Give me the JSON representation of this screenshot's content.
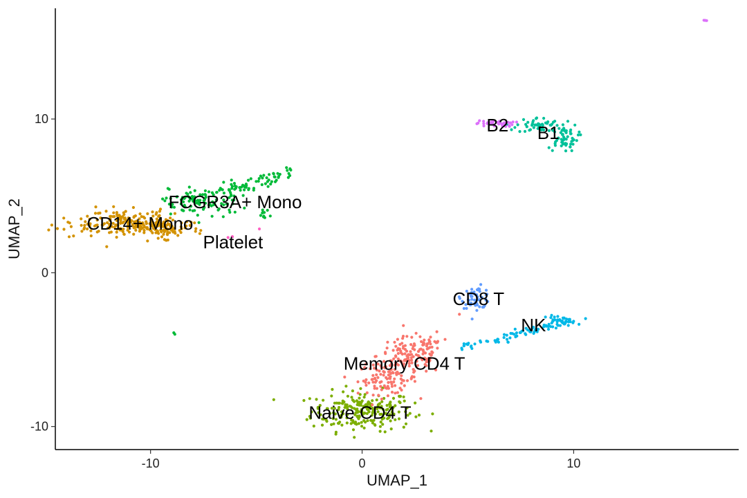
{
  "chart_data": {
    "type": "scatter",
    "title": "",
    "xlabel": "UMAP_1",
    "ylabel": "UMAP_2",
    "xlim": [
      -14.5,
      17.8
    ],
    "ylim": [
      -11.5,
      17.2
    ],
    "xticks": [
      -10,
      0,
      10
    ],
    "yticks": [
      -10,
      0,
      10
    ],
    "grid": false,
    "legend": "none",
    "clusters": [
      {
        "label": "Naive CD4 T",
        "color": "#7CAE00",
        "label_pos": [
          -0.1,
          -9.1
        ],
        "blobs": [
          {
            "cx": 0.0,
            "cy": -9.0,
            "sx": 1.2,
            "sy": 0.65,
            "n": 230
          }
        ]
      },
      {
        "label": "Memory CD4 T",
        "color": "#F8766D",
        "label_pos": [
          2.0,
          -5.9
        ],
        "blobs": [
          {
            "cx": 1.2,
            "cy": -6.9,
            "sx": 0.7,
            "sy": 0.5,
            "n": 100
          },
          {
            "cx": 2.3,
            "cy": -5.4,
            "sx": 0.8,
            "sy": 0.6,
            "n": 120
          },
          {
            "cx": 3.2,
            "cy": -4.6,
            "sx": 0.3,
            "sy": 0.4,
            "n": 20
          }
        ]
      },
      {
        "label": "CD8 T",
        "color": "#619CFF",
        "label_pos": [
          5.5,
          -1.7
        ],
        "blobs": [
          {
            "cx": 5.4,
            "cy": -1.6,
            "sx": 0.35,
            "sy": 0.35,
            "n": 60
          }
        ]
      },
      {
        "label": "NK",
        "color": "#00B8E7",
        "label_pos": [
          8.1,
          -3.4
        ],
        "line": {
          "from": [
            4.6,
            -4.9
          ],
          "to": [
            9.8,
            -3.1
          ],
          "n": 80,
          "spread": 0.15
        },
        "blobs": [
          {
            "cx": 9.3,
            "cy": -3.1,
            "sx": 0.4,
            "sy": 0.15,
            "n": 30
          }
        ]
      },
      {
        "label": "B1",
        "color": "#00C19A",
        "label_pos": [
          8.8,
          9.1
        ],
        "blobs": [
          {
            "cx": 8.3,
            "cy": 9.6,
            "sx": 0.5,
            "sy": 0.25,
            "n": 50
          },
          {
            "cx": 9.5,
            "cy": 8.8,
            "sx": 0.35,
            "sy": 0.45,
            "n": 60
          }
        ]
      },
      {
        "label": "B2",
        "color": "#DC71FA",
        "label_pos": [
          6.4,
          9.6
        ],
        "blobs": [
          {
            "cx": 6.3,
            "cy": 9.7,
            "sx": 0.45,
            "sy": 0.1,
            "n": 40
          },
          {
            "cx": 16.2,
            "cy": 16.4,
            "sx": 0.05,
            "sy": 0.05,
            "n": 3
          }
        ]
      },
      {
        "label": "FCGR3A+ Mono",
        "color": "#00BA38",
        "label_pos": [
          -6.0,
          4.6
        ],
        "line": {
          "from": [
            -9.0,
            4.2
          ],
          "to": [
            -3.4,
            6.6
          ],
          "n": 110,
          "spread": 0.25
        },
        "blobs": [
          {
            "cx": -7.3,
            "cy": 4.6,
            "sx": 0.9,
            "sy": 0.6,
            "n": 60
          },
          {
            "cx": -4.6,
            "cy": 3.7,
            "sx": 0.15,
            "sy": 0.2,
            "n": 10
          }
        ]
      },
      {
        "label": "CD14+ Mono",
        "color": "#D39200",
        "label_pos": [
          -10.5,
          3.2
        ],
        "blobs": [
          {
            "cx": -11.0,
            "cy": 3.2,
            "sx": 1.3,
            "sy": 0.4,
            "n": 220
          },
          {
            "cx": -9.3,
            "cy": 2.9,
            "sx": 0.6,
            "sy": 0.3,
            "n": 50
          }
        ]
      },
      {
        "label": "Platelet",
        "color": "#FF61C3",
        "label_pos": [
          -6.1,
          2.0
        ],
        "blobs": [
          {
            "cx": -6.2,
            "cy": 2.3,
            "sx": 0.1,
            "sy": 0.05,
            "n": 3
          },
          {
            "cx": -5.0,
            "cy": 2.8,
            "sx": 0.05,
            "sy": 0.05,
            "n": 1
          }
        ]
      }
    ],
    "extra_points": [
      {
        "x": -8.9,
        "y": -3.9,
        "color": "#00BA38"
      },
      {
        "x": -8.85,
        "y": -4.0,
        "color": "#00BA38"
      },
      {
        "x": 4.6,
        "y": -2.7,
        "color": "#F8766D"
      }
    ]
  }
}
